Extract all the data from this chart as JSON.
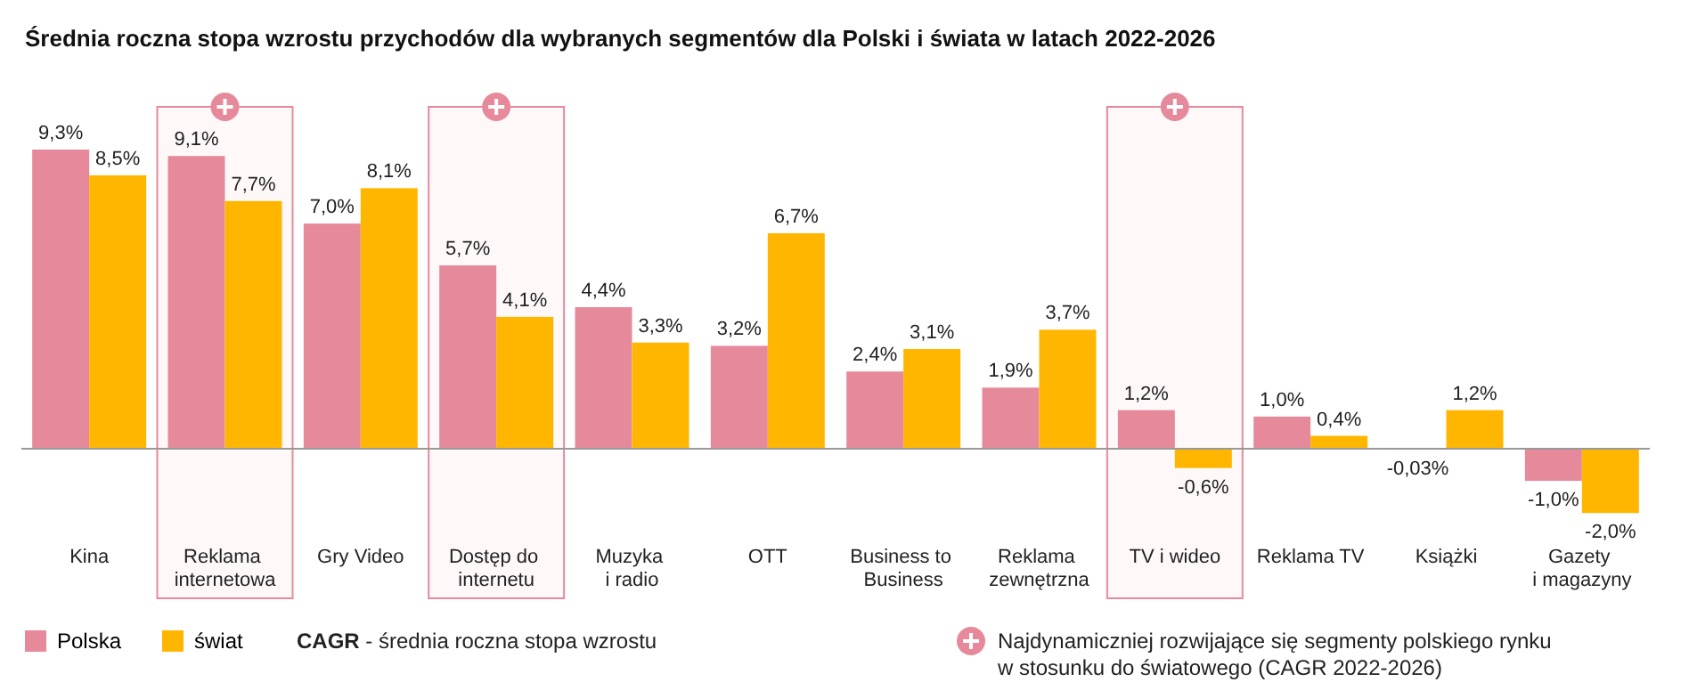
{
  "chart_data": {
    "type": "bar",
    "title": "Średnia roczna stopa wzrostu przychodów dla wybranych segmentów dla Polski i świata w latach 2022-2026",
    "categories": [
      "Kina",
      "Reklama\ninternetowa",
      "Gry Video",
      "Dostęp do\ninternetu",
      "Muzyka\ni radio",
      "OTT",
      "Business to\nBusiness",
      "Reklama\nzewnętrzna",
      "TV i wideo",
      "Reklama TV",
      "Książki",
      "Gazety\ni magazyny"
    ],
    "series": [
      {
        "name": "Polska",
        "color": "#e68a9b",
        "values": [
          9.3,
          9.1,
          7.0,
          5.7,
          4.4,
          3.2,
          2.4,
          1.9,
          1.2,
          1.0,
          -0.03,
          -1.0
        ],
        "value_labels": [
          "9,3%",
          "9,1%",
          "7,0%",
          "5,7%",
          "4,4%",
          "3,2%",
          "2,4%",
          "1,9%",
          "1,2%",
          "1,0%",
          "-0,03%",
          "-1,0%"
        ]
      },
      {
        "name": "świat",
        "color": "#ffb600",
        "values": [
          8.5,
          7.7,
          8.1,
          4.1,
          3.3,
          6.7,
          3.1,
          3.7,
          -0.6,
          0.4,
          1.2,
          -2.0
        ],
        "value_labels": [
          "8,5%",
          "7,7%",
          "8,1%",
          "4,1%",
          "3,3%",
          "6,7%",
          "3,1%",
          "3,7%",
          "-0,6%",
          "0,4%",
          "1,2%",
          "-2,0%"
        ]
      }
    ],
    "bands": [
      {
        "axis": "x",
        "from": "Reklama\ninternetowa",
        "to": "Reklama\ninternetowa",
        "color": "#e68a9b"
      },
      {
        "axis": "x",
        "from": "Dostęp do\ninternetu",
        "to": "Dostęp do\ninternetu",
        "color": "#e68a9b"
      },
      {
        "axis": "x",
        "from": "TV i wideo",
        "to": "TV i wideo",
        "color": "#e68a9b"
      }
    ],
    "legend": "bottom left",
    "annotations": [
      "CAGR - średnia roczna stopa wzrostu",
      "Najdynamiczniej rozwijające się segmenty polskiego rynku\nw stosunku do światowego (CAGR 2022-2026)"
    ]
  }
}
